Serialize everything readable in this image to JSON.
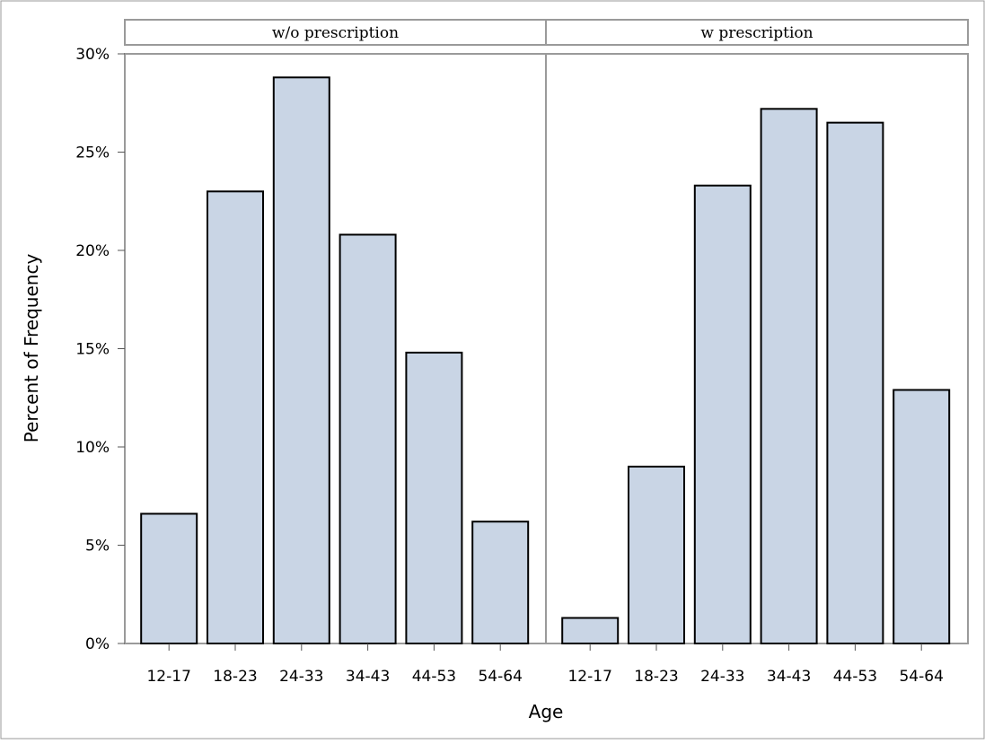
{
  "chart_data": {
    "type": "bar",
    "xlabel": "Age",
    "ylabel": "Percent of Frequency",
    "ylim": [
      0,
      30
    ],
    "yticks": [
      0,
      5,
      10,
      15,
      20,
      25,
      30
    ],
    "ytick_labels": [
      "0%",
      "5%",
      "10%",
      "15%",
      "20%",
      "25%",
      "30%"
    ],
    "categories": [
      "12-17",
      "18-23",
      "24-33",
      "34-43",
      "44-53",
      "54-64"
    ],
    "colors": {
      "bar_fill": "#c9d5e5",
      "bar_stroke": "#000000",
      "frame": "#9a9a9a"
    },
    "panels": [
      {
        "name": "w/o prescription",
        "values": [
          6.6,
          23.0,
          28.8,
          20.8,
          14.8,
          6.2
        ]
      },
      {
        "name": "w prescription",
        "values": [
          1.3,
          9.0,
          23.3,
          27.2,
          26.5,
          12.9
        ]
      }
    ]
  }
}
